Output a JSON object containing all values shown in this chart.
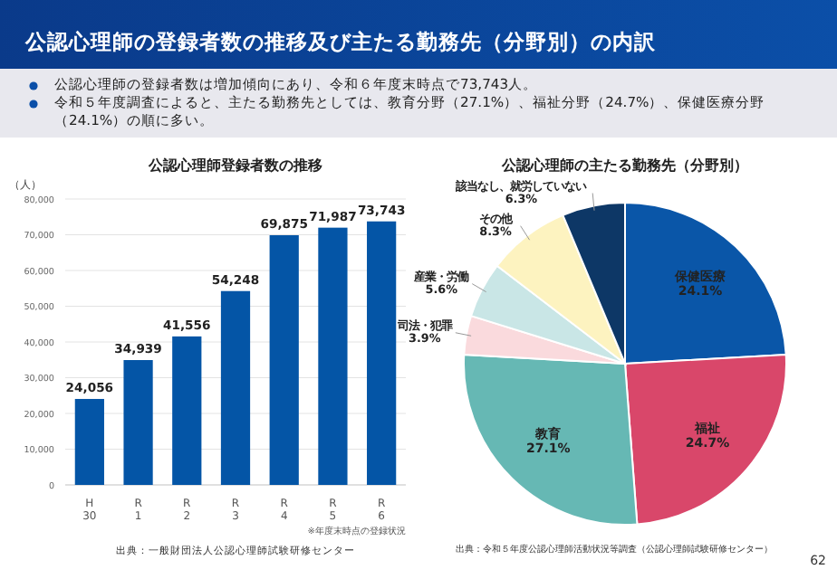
{
  "chart_data": [
    {
      "type": "other",
      "title": "公認心理師の登録者数の推移及び主たる勤務先（分野別）の内訳",
      "annotations": [
        "公認心理師の登録者数は増加傾向にあり、令和６年度末時点で73,743人。",
        "令和５年度調査によると、主たる勤務先としては、教育分野（27.1%）、福祉分野（24.7%）、保健医療分野（24.1%）の順に多い。",
        "62"
      ]
    },
    {
      "type": "bar",
      "title": "公認心理師登録者数の推移",
      "ylabel": "（人）",
      "categories": [
        "H\n30",
        "R\n1",
        "R\n2",
        "R\n3",
        "R\n4",
        "R\n5",
        "R\n6"
      ],
      "values": [
        24056,
        34939,
        41556,
        54248,
        69875,
        71987,
        73743
      ],
      "color": "#0455a6",
      "ylim": [
        0,
        80000
      ],
      "yticks": [
        {
          "value": 0,
          "label": "0"
        },
        {
          "value": 10000,
          "label": "10,000"
        },
        {
          "value": 20000,
          "label": "20,000"
        },
        {
          "value": 30000,
          "label": "30,000"
        },
        {
          "value": 40000,
          "label": "40,000"
        },
        {
          "value": 50000,
          "label": "50,000"
        },
        {
          "value": 60000,
          "label": "60,000"
        },
        {
          "value": 70000,
          "label": "70,000"
        },
        {
          "value": 80000,
          "label": "80,000"
        }
      ],
      "grid": "y",
      "value_labels": [
        "24,056",
        "34,939",
        "41,556",
        "54,248",
        "69,875",
        "71,987",
        "73,743"
      ],
      "annotations": [
        "※年度末時点の登録状況",
        "出典：一般財団法人公認心理師試験研修センター"
      ]
    },
    {
      "type": "pie",
      "title": "公認心理師の主たる勤務先（分野別）",
      "categories": [
        "保健医療",
        "福祉",
        "教育",
        "司法・犯罪",
        "産業・労働",
        "その他",
        "該当なし、就労していない"
      ],
      "values": [
        24.1,
        24.7,
        27.1,
        3.9,
        5.6,
        8.3,
        6.3
      ],
      "colors": [
        "#0a56a8",
        "#d9476a",
        "#66b8b4",
        "#fadadd",
        "#c9e6e6",
        "#fdf3c0",
        "#0d3766"
      ],
      "value_labels": [
        "24.1%",
        "24.7%",
        "27.1%",
        "3.9%",
        "5.6%",
        "8.3%",
        "6.3%"
      ],
      "annotations": [
        "出典：令和５年度公認心理師活動状況等調査（公認心理師試験研修センター）"
      ]
    }
  ]
}
